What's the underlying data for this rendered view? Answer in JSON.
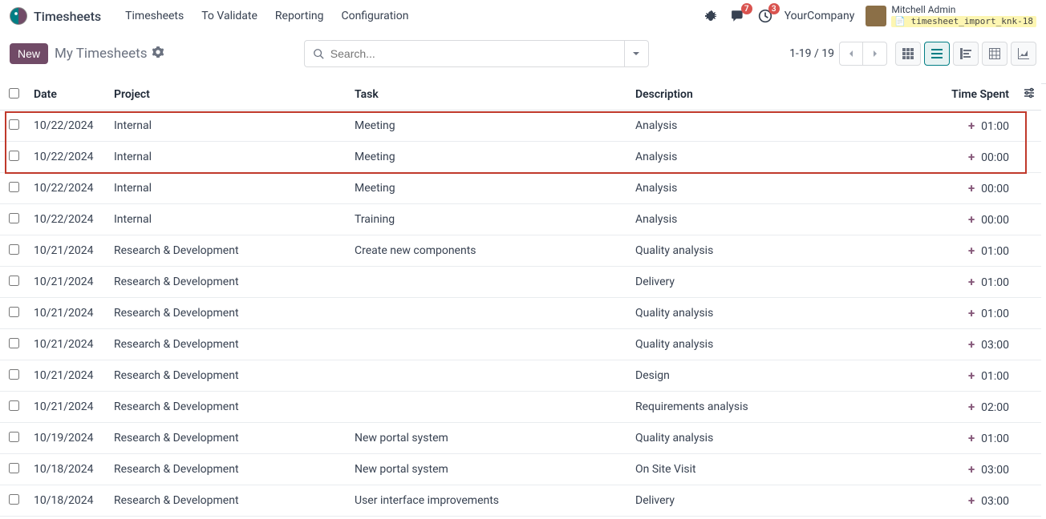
{
  "app": {
    "name": "Timesheets"
  },
  "nav": {
    "items": [
      "Timesheets",
      "To Validate",
      "Reporting",
      "Configuration"
    ]
  },
  "sys": {
    "chat_badge": "7",
    "activity_badge": "3",
    "company": "YourCompany",
    "user_name": "Mitchell Admin",
    "db_name": "timesheet_import_knk-18"
  },
  "controls": {
    "new_label": "New",
    "breadcrumb": "My Timesheets",
    "search_placeholder": "Search...",
    "pager_text": "1-19 / 19"
  },
  "columns": {
    "date": "Date",
    "project": "Project",
    "task": "Task",
    "description": "Description",
    "time": "Time Spent"
  },
  "rows": [
    {
      "date": "10/22/2024",
      "project": "Internal",
      "task": "Meeting",
      "description": "Analysis",
      "time": "01:00"
    },
    {
      "date": "10/22/2024",
      "project": "Internal",
      "task": "Meeting",
      "description": "Analysis",
      "time": "00:00"
    },
    {
      "date": "10/22/2024",
      "project": "Internal",
      "task": "Meeting",
      "description": "Analysis",
      "time": "00:00"
    },
    {
      "date": "10/22/2024",
      "project": "Internal",
      "task": "Training",
      "description": "Analysis",
      "time": "00:00"
    },
    {
      "date": "10/21/2024",
      "project": "Research & Development",
      "task": "Create new components",
      "description": "Quality analysis",
      "time": "01:00"
    },
    {
      "date": "10/21/2024",
      "project": "Research & Development",
      "task": "",
      "description": "Delivery",
      "time": "01:00"
    },
    {
      "date": "10/21/2024",
      "project": "Research & Development",
      "task": "",
      "description": "Quality analysis",
      "time": "01:00"
    },
    {
      "date": "10/21/2024",
      "project": "Research & Development",
      "task": "",
      "description": "Quality analysis",
      "time": "03:00"
    },
    {
      "date": "10/21/2024",
      "project": "Research & Development",
      "task": "",
      "description": "Design",
      "time": "01:00"
    },
    {
      "date": "10/21/2024",
      "project": "Research & Development",
      "task": "",
      "description": "Requirements analysis",
      "time": "02:00"
    },
    {
      "date": "10/19/2024",
      "project": "Research & Development",
      "task": "New portal system",
      "description": "Quality analysis",
      "time": "01:00"
    },
    {
      "date": "10/18/2024",
      "project": "Research & Development",
      "task": "New portal system",
      "description": "On Site Visit",
      "time": "03:00"
    },
    {
      "date": "10/18/2024",
      "project": "Research & Development",
      "task": "User interface improvements",
      "description": "Delivery",
      "time": "03:00"
    }
  ],
  "highlight": {
    "start": 0,
    "end": 1
  },
  "colors": {
    "primary": "#714b67",
    "teal": "#017e84",
    "badge": "#d9534f",
    "highlight_border": "#c0392b"
  }
}
